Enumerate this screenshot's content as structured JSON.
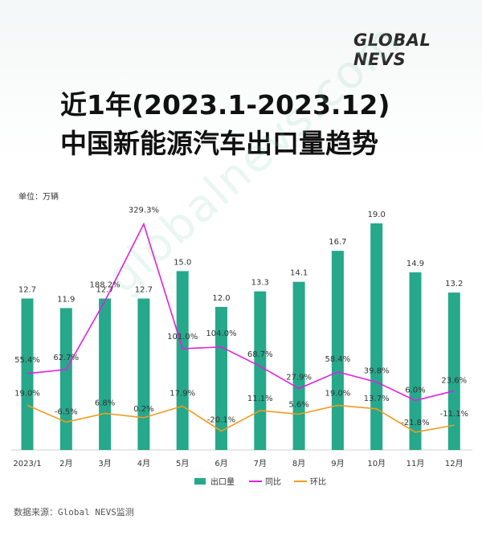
{
  "header": {
    "logo": "GLOBAL NEVS",
    "title_line1": "近1年(2023.1-2023.12)",
    "title_line2": "中国新能源汽车出口量趋势"
  },
  "unit_label": "单位：万辆",
  "source": "数据来源：Global NEVS监测",
  "watermark": "globalnevs.com",
  "colors": {
    "bar": "#26a88a",
    "yoy": "#e020e0",
    "mom": "#f39a1e"
  },
  "chart_data": {
    "type": "bar",
    "categories": [
      "2023/1",
      "2月",
      "3月",
      "4月",
      "5月",
      "6月",
      "7月",
      "8月",
      "9月",
      "10月",
      "11月",
      "12月"
    ],
    "series": [
      {
        "name": "出口量",
        "type": "bar",
        "values": [
          12.7,
          11.9,
          12.7,
          12.7,
          15.0,
          12.0,
          13.3,
          14.1,
          16.7,
          19.0,
          14.9,
          13.2
        ],
        "labels": [
          "12.7",
          "11.9",
          "12.7",
          "12.7",
          "15.0",
          "12.0",
          "13.3",
          "14.1",
          "16.7",
          "19.0",
          "14.9",
          "13.2"
        ]
      },
      {
        "name": "同比",
        "type": "line",
        "values": [
          55.4,
          62.7,
          188.2,
          329.3,
          101.0,
          104.0,
          68.7,
          27.9,
          58.4,
          39.8,
          6.0,
          23.6
        ],
        "labels": [
          "55.4%",
          "62.7%",
          "188.2%",
          "329.3%",
          "101.0%",
          "104.0%",
          "68.7%",
          "27.9%",
          "58.4%",
          "39.8%",
          "6.0%",
          "23.6%"
        ]
      },
      {
        "name": "环比",
        "type": "line",
        "values": [
          19.0,
          -6.5,
          6.8,
          0.2,
          17.9,
          -20.1,
          11.1,
          5.6,
          19.0,
          13.7,
          -21.8,
          -11.1
        ],
        "labels": [
          "19.0%",
          "-6.5%",
          "6.8%",
          "0.2%",
          "17.9%",
          "-20.1%",
          "11.1%",
          "5.6%",
          "19.0%",
          "13.7%",
          "-21.8%",
          "-11.1%"
        ]
      }
    ],
    "legend": [
      "出口量",
      "同比",
      "环比"
    ],
    "legend_position": "bottom",
    "ylabel": "单位：万辆",
    "grid": false
  }
}
